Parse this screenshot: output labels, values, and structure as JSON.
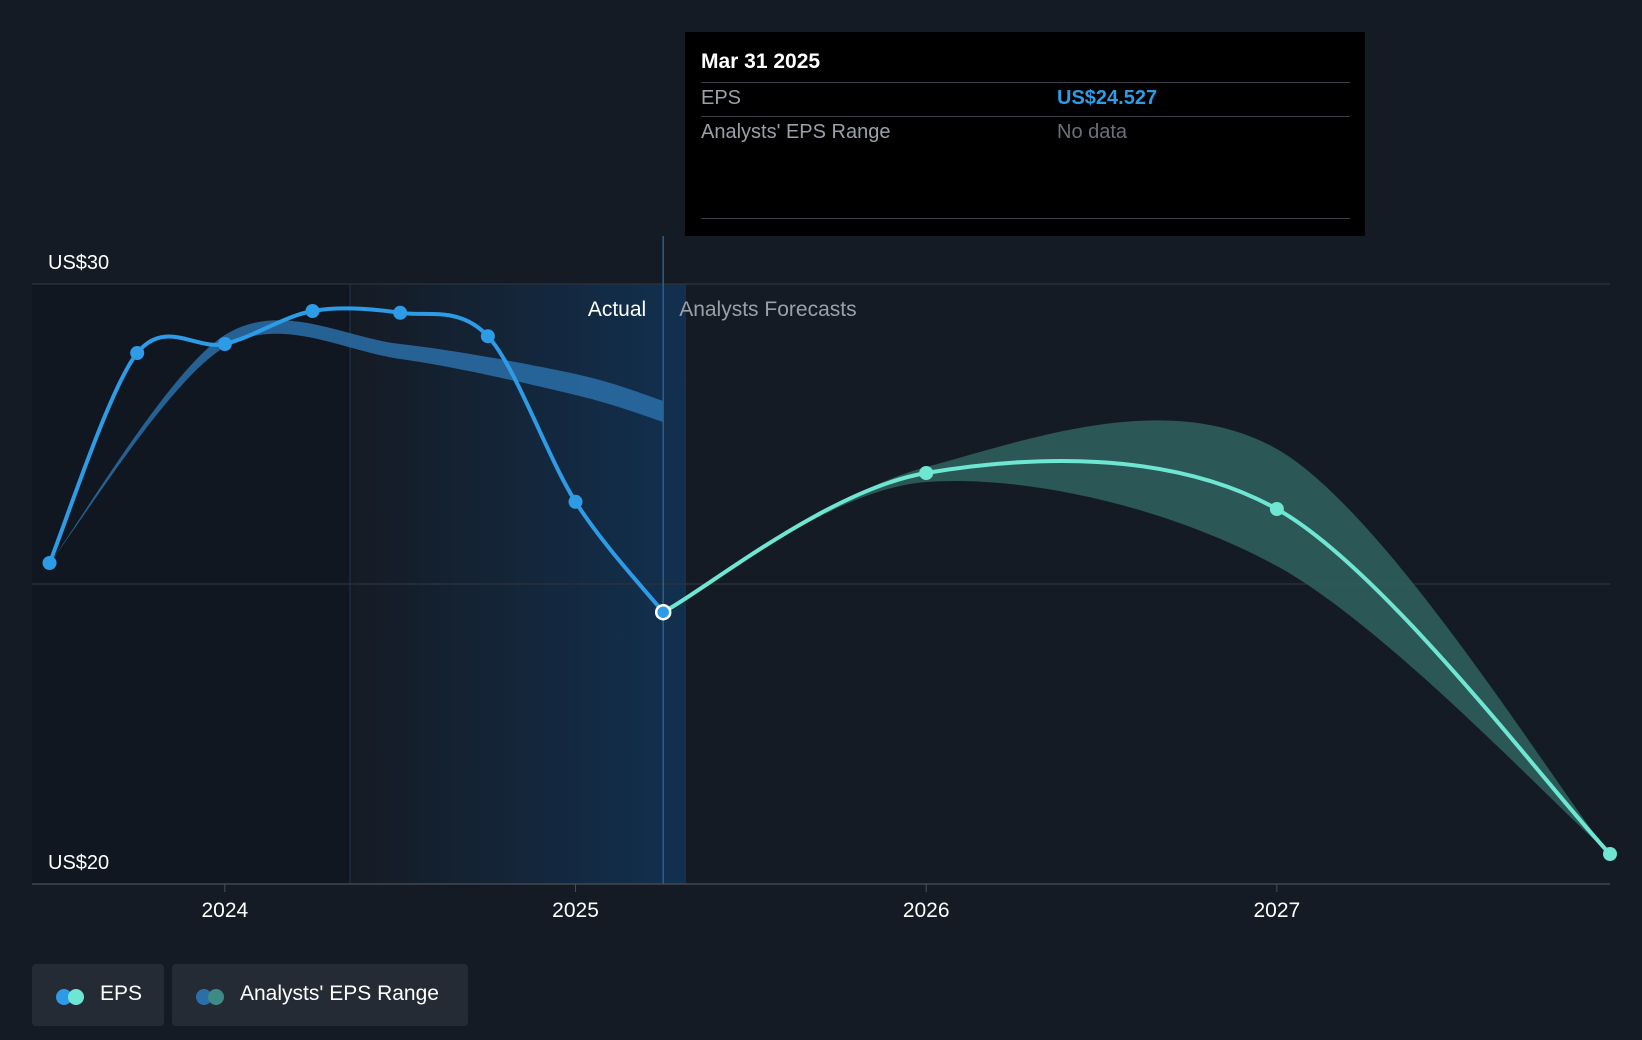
{
  "colors": {
    "background": "#151b24",
    "eps_actual": "#2d9be6",
    "eps_forecast": "#6ee6d2",
    "range_actual": "#2a6fa8",
    "range_forecast": "#2e5e5d",
    "actual_shade": "#12304f"
  },
  "tooltip": {
    "date": "Mar 31 2025",
    "eps_label": "EPS",
    "eps_value": "US$24.527",
    "range_label": "Analysts' EPS Range",
    "range_value": "No data"
  },
  "legend": {
    "eps_label": "EPS",
    "range_label": "Analysts' EPS Range"
  },
  "chart_data": {
    "type": "line",
    "title": "",
    "xlabel": "",
    "ylabel": "",
    "y_unit_prefix": "US$",
    "ylim": [
      20,
      30
    ],
    "xlim": [
      2023.45,
      2027.95
    ],
    "y_tick_labels": [
      {
        "value": 30,
        "label": "US$30"
      },
      {
        "value": 20,
        "label": "US$20"
      }
    ],
    "x_ticks": [
      {
        "value": 2024.0,
        "label": "2024"
      },
      {
        "value": 2025.0,
        "label": "2025"
      },
      {
        "value": 2026.0,
        "label": "2026"
      },
      {
        "value": 2027.0,
        "label": "2027"
      }
    ],
    "grid_y": [
      30,
      25,
      20
    ],
    "divider_x": 2025.25,
    "section_labels": {
      "actual": "Actual",
      "forecast": "Analysts Forecasts"
    },
    "series": [
      {
        "name": "EPS (actual)",
        "x": [
          2023.5,
          2023.75,
          2024.0,
          2024.25,
          2024.5,
          2024.75,
          2025.0,
          2025.25
        ],
        "values": [
          25.35,
          28.85,
          29.0,
          29.55,
          29.52,
          29.13,
          26.37,
          24.53
        ]
      },
      {
        "name": "EPS (forecast)",
        "x": [
          2025.25,
          2026.0,
          2027.0,
          2027.95
        ],
        "values": [
          24.53,
          26.85,
          26.25,
          20.5
        ]
      }
    ],
    "analyst_range_actual": {
      "x": [
        2023.5,
        2024.0,
        2024.5,
        2025.0,
        2025.25
      ],
      "low": [
        25.35,
        28.95,
        28.75,
        28.15,
        27.7
      ],
      "high": [
        25.35,
        29.15,
        29.0,
        28.5,
        28.05
      ]
    },
    "analyst_range_forecast": {
      "x": [
        2025.25,
        2026.0,
        2027.0,
        2027.95
      ],
      "low": [
        24.53,
        26.7,
        25.3,
        20.5
      ],
      "high": [
        24.53,
        26.95,
        27.25,
        20.5
      ]
    }
  }
}
